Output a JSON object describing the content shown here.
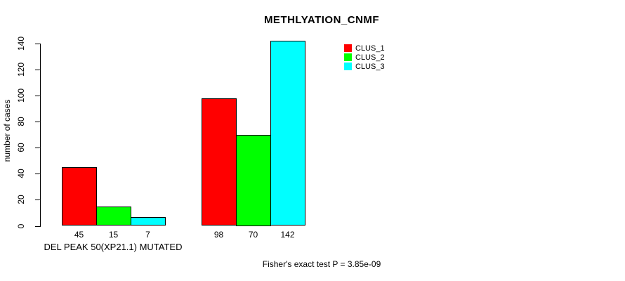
{
  "chart_data": {
    "type": "bar",
    "title": "METHLYATION_CNMF",
    "xlabel": "",
    "ylabel": "number of cases",
    "ylim": [
      0,
      140
    ],
    "yticks": [
      0,
      20,
      40,
      60,
      80,
      100,
      120,
      140
    ],
    "categories": [
      "DEL PEAK 50(XP21.1) MUTATED",
      ""
    ],
    "series": [
      {
        "name": "CLUS_1",
        "color": "#ff0000",
        "values": [
          45,
          98
        ]
      },
      {
        "name": "CLUS_2",
        "color": "#00ff00",
        "values": [
          15,
          70
        ]
      },
      {
        "name": "CLUS_3",
        "color": "#00ffff",
        "values": [
          7,
          142
        ]
      }
    ],
    "bar_value_labels": [
      [
        45,
        15,
        7
      ],
      [
        98,
        70,
        142
      ]
    ],
    "legend_position": "top-right",
    "grid": false,
    "annotation": "Fisher's exact test P = 3.85e-09",
    "axis_color": "#000000",
    "background_color": "#ffffff"
  }
}
